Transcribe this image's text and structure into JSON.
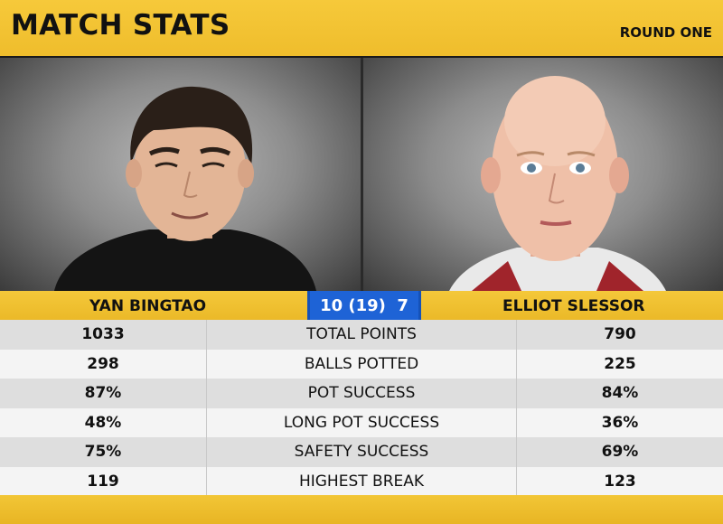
{
  "header": {
    "title": "MATCH STATS",
    "round": "ROUND ONE"
  },
  "players": {
    "left": {
      "name": "YAN BINGTAO"
    },
    "right": {
      "name": "ELLIOT SLESSOR"
    }
  },
  "score": "10 (19)  7",
  "stats": [
    {
      "left": "1033",
      "label": "TOTAL POINTS",
      "right": "790"
    },
    {
      "left": "298",
      "label": "BALLS POTTED",
      "right": "225"
    },
    {
      "left": "87%",
      "label": "POT SUCCESS",
      "right": "84%"
    },
    {
      "left": "48%",
      "label": "LONG POT SUCCESS",
      "right": "36%"
    },
    {
      "left": "75%",
      "label": "SAFETY SUCCESS",
      "right": "69%"
    },
    {
      "left": "119",
      "label": "HIGHEST BREAK",
      "right": "123"
    }
  ],
  "colors": {
    "yellow": "#f4c83a",
    "score_blue": "#1e63d6"
  }
}
